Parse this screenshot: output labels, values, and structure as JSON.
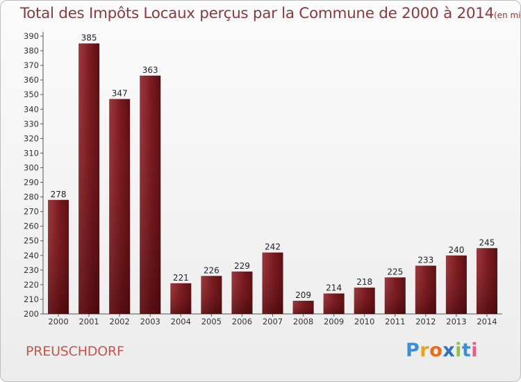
{
  "header": {
    "title": "Total des Impôts Locaux perçus par la Commune de 2000 à 2014",
    "unit": "(en milliers d'€)"
  },
  "footer": {
    "commune": "PREUSCHDORF",
    "logo_letters": [
      "P",
      "r",
      "o",
      "x",
      "i",
      "t",
      "i"
    ],
    "logo_colors": [
      "#3b8fd6",
      "#e8a221",
      "#e86a1a",
      "#2f6fc4",
      "#8cc63f",
      "#3b8fd6",
      "#e85a8a"
    ]
  },
  "chart_data": {
    "type": "bar",
    "title": "Total des Impôts Locaux perçus par la Commune de 2000 à 2014",
    "unit": "(en milliers d'€)",
    "categories": [
      "2000",
      "2001",
      "2002",
      "2003",
      "2004",
      "2005",
      "2006",
      "2007",
      "2008",
      "2009",
      "2010",
      "2011",
      "2012",
      "2013",
      "2014"
    ],
    "values": [
      278,
      385,
      347,
      363,
      221,
      226,
      229,
      242,
      209,
      214,
      218,
      225,
      233,
      240,
      245
    ],
    "ylim": [
      200,
      390
    ],
    "yticks": [
      200,
      210,
      220,
      230,
      240,
      250,
      260,
      270,
      280,
      290,
      300,
      310,
      320,
      330,
      340,
      350,
      360,
      370,
      380,
      390
    ],
    "grid": false,
    "bar_color": "#7a1a1f",
    "bar_color_dark": "#4e0c10"
  }
}
